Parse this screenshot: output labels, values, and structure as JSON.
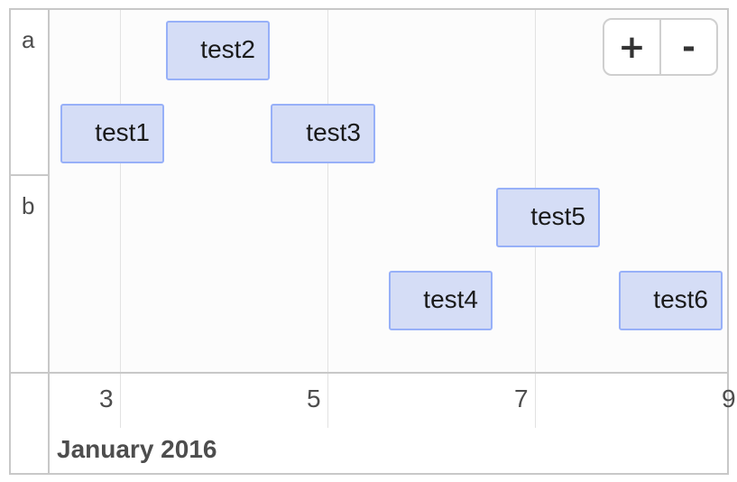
{
  "groups": [
    {
      "label": "a"
    },
    {
      "label": "b"
    }
  ],
  "items": [
    {
      "label": "test1",
      "group": "a"
    },
    {
      "label": "test2",
      "group": "a"
    },
    {
      "label": "test3",
      "group": "a"
    },
    {
      "label": "test4",
      "group": "b"
    },
    {
      "label": "test5",
      "group": "b"
    },
    {
      "label": "test6",
      "group": "b"
    }
  ],
  "zoom": {
    "in_label": "+",
    "out_label": "-"
  },
  "axis": {
    "minor_ticks": [
      "3",
      "5",
      "7",
      "9"
    ],
    "major_label": "January 2016"
  },
  "colors": {
    "item_background": "#d5ddf6",
    "item_border": "#97b0f8",
    "grid_line": "#e2e2e2",
    "frame_border": "#c8c8c8"
  }
}
